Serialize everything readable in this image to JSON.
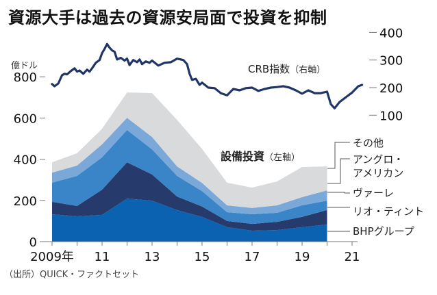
{
  "chart_data": {
    "type": "area",
    "title": "資源大手は過去の資源安局面で投資を抑制",
    "source": "（出所）QUICK・ファクトセット",
    "left_axis": {
      "unit_label": "億ドル",
      "ticks": [
        0,
        200,
        400,
        600,
        800
      ],
      "tick_labels": [
        "0",
        "200",
        "400",
        "600",
        "800"
      ],
      "range": [
        0,
        800
      ]
    },
    "right_axis": {
      "ticks": [
        100,
        200,
        300,
        400
      ],
      "tick_labels": [
        "100",
        "200",
        "300",
        "400"
      ],
      "range": [
        100,
        400
      ]
    },
    "x_axis": {
      "range": [
        2009,
        2021
      ],
      "tick_years": [
        2009,
        2010,
        2011,
        2012,
        2013,
        2014,
        2015,
        2016,
        2017,
        2018,
        2019,
        2020,
        2021
      ],
      "labeled_years": [
        2009,
        2011,
        2013,
        2015,
        2017,
        2019,
        2021
      ],
      "tick_labels": [
        "2009年",
        "11",
        "13",
        "15",
        "17",
        "19",
        "21"
      ]
    },
    "area_title": "設備投資",
    "area_axis_note": "（左軸）",
    "line_title": "CRB指数",
    "line_axis_note": "（右軸）",
    "x": [
      2009,
      2010,
      2011,
      2012,
      2013,
      2014,
      2015,
      2016,
      2017,
      2018,
      2019,
      2020
    ],
    "series": [
      {
        "name": "BHPグループ",
        "color": "#0a62b0",
        "values": [
          133,
          123,
          130,
          209,
          199,
          153,
          120,
          70,
          53,
          56,
          70,
          83
        ]
      },
      {
        "name": "リオ・ティント",
        "color": "#263a6b",
        "values": [
          60,
          50,
          122,
          176,
          127,
          66,
          50,
          30,
          33,
          40,
          50,
          70
        ]
      },
      {
        "name": "ヴァーレ",
        "color": "#3a85c8",
        "values": [
          93,
          146,
          157,
          157,
          122,
          100,
          75,
          43,
          47,
          44,
          56,
          46
        ]
      },
      {
        "name": "アングロ・\nアメリカン",
        "color": "#7aa8d8",
        "values": [
          49,
          50,
          63,
          59,
          60,
          46,
          40,
          33,
          30,
          36,
          40,
          50
        ]
      },
      {
        "name": "その他",
        "color": "#d9dadc",
        "values": [
          50,
          60,
          76,
          123,
          213,
          226,
          165,
          110,
          99,
          116,
          146,
          116
        ]
      }
    ],
    "legend_labels": [
      "その他",
      "アングロ・",
      "アメリカン",
      "ヴァーレ",
      "リオ・ティント",
      "BHPグループ"
    ],
    "crb": {
      "name": "CRB指数",
      "color": "#1f3566",
      "x": [
        2009.0,
        2009.1,
        2009.25,
        2009.4,
        2009.5,
        2009.6,
        2009.75,
        2009.9,
        2010.0,
        2010.1,
        2010.25,
        2010.4,
        2010.5,
        2010.6,
        2010.75,
        2010.9,
        2011.0,
        2011.1,
        2011.2,
        2011.3,
        2011.4,
        2011.5,
        2011.6,
        2011.75,
        2011.9,
        2012.0,
        2012.1,
        2012.25,
        2012.4,
        2012.5,
        2012.6,
        2012.75,
        2012.9,
        2013.0,
        2013.25,
        2013.5,
        2013.75,
        2014.0,
        2014.25,
        2014.4,
        2014.5,
        2014.6,
        2014.75,
        2014.9,
        2015.0,
        2015.25,
        2015.5,
        2015.75,
        2016.0,
        2016.25,
        2016.5,
        2016.75,
        2017.0,
        2017.25,
        2017.5,
        2017.75,
        2018.0,
        2018.25,
        2018.5,
        2018.75,
        2019.0,
        2019.25,
        2019.5,
        2019.75,
        2020.0,
        2020.15,
        2020.3,
        2020.5,
        2020.75,
        2021.0,
        2021.25,
        2021.4
      ],
      "values": [
        213,
        205,
        215,
        245,
        250,
        248,
        260,
        270,
        258,
        262,
        250,
        265,
        258,
        270,
        290,
        300,
        325,
        340,
        358,
        345,
        335,
        330,
        302,
        308,
        298,
        305,
        282,
        300,
        292,
        302,
        285,
        295,
        290,
        298,
        280,
        290,
        292,
        305,
        300,
        285,
        250,
        228,
        232,
        210,
        218,
        200,
        198,
        180,
        172,
        195,
        190,
        198,
        200,
        188,
        195,
        200,
        202,
        205,
        200,
        190,
        178,
        190,
        180,
        180,
        185,
        140,
        125,
        148,
        165,
        182,
        205,
        210
      ]
    }
  }
}
